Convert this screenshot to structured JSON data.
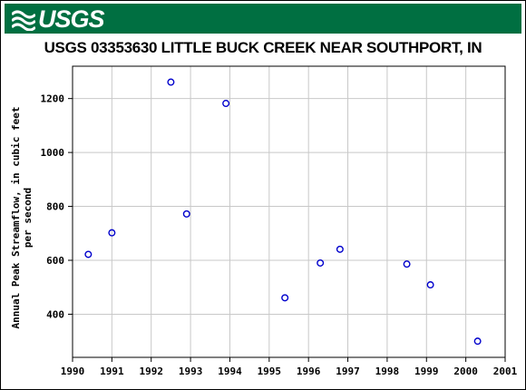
{
  "banner": {
    "logo_text": "USGS",
    "logo_icon": "usgs-wave-icon",
    "color": "#006f41"
  },
  "chart_data": {
    "type": "scatter",
    "title": "USGS 03353630 LITTLE BUCK CREEK NEAR SOUTHPORT, IN",
    "xlabel": "",
    "ylabel": "Annual Peak Streamflow, in cubic feet per second",
    "xlim": [
      1990,
      2001
    ],
    "ylim": [
      240,
      1320
    ],
    "x_ticks": [
      "1990",
      "1991",
      "1992",
      "1993",
      "1994",
      "1995",
      "1996",
      "1997",
      "1998",
      "1999",
      "2000",
      "2001"
    ],
    "y_ticks": [
      "400",
      "600",
      "800",
      "1000",
      "1200"
    ],
    "grid": true,
    "marker_color": "#0000cc",
    "points": [
      {
        "x": 1990.4,
        "y": 622
      },
      {
        "x": 1991.0,
        "y": 702
      },
      {
        "x": 1992.5,
        "y": 1261
      },
      {
        "x": 1992.9,
        "y": 772
      },
      {
        "x": 1993.9,
        "y": 1182
      },
      {
        "x": 1995.4,
        "y": 461
      },
      {
        "x": 1996.3,
        "y": 590
      },
      {
        "x": 1996.8,
        "y": 641
      },
      {
        "x": 1998.5,
        "y": 586
      },
      {
        "x": 1999.1,
        "y": 509
      },
      {
        "x": 2000.3,
        "y": 300
      }
    ]
  }
}
